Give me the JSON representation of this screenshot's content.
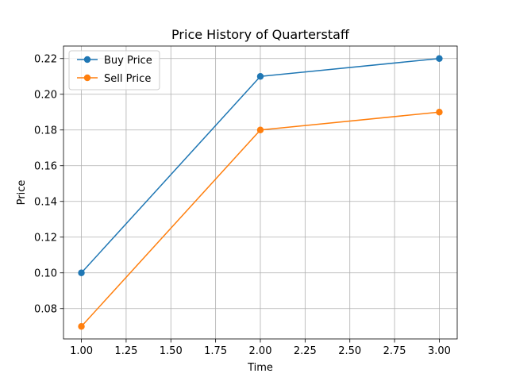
{
  "chart_data": {
    "type": "line",
    "title": "Price History of Quarterstaff",
    "xlabel": "Time",
    "ylabel": "Price",
    "xlim": [
      0.9,
      3.1
    ],
    "ylim": [
      0.063,
      0.227
    ],
    "xticks": [
      "1.00",
      "1.25",
      "1.50",
      "1.75",
      "2.00",
      "2.25",
      "2.50",
      "2.75",
      "3.00"
    ],
    "yticks": [
      "0.08",
      "0.10",
      "0.12",
      "0.14",
      "0.16",
      "0.18",
      "0.20",
      "0.22"
    ],
    "grid": true,
    "legend_position": "top-left",
    "series": [
      {
        "name": "Buy Price",
        "color": "#1f77b4",
        "marker": "circle",
        "x": [
          1,
          2,
          3
        ],
        "y": [
          0.1,
          0.21,
          0.22
        ]
      },
      {
        "name": "Sell Price",
        "color": "#ff7f0e",
        "marker": "circle",
        "x": [
          1,
          2,
          3
        ],
        "y": [
          0.07,
          0.18,
          0.19
        ]
      }
    ]
  }
}
